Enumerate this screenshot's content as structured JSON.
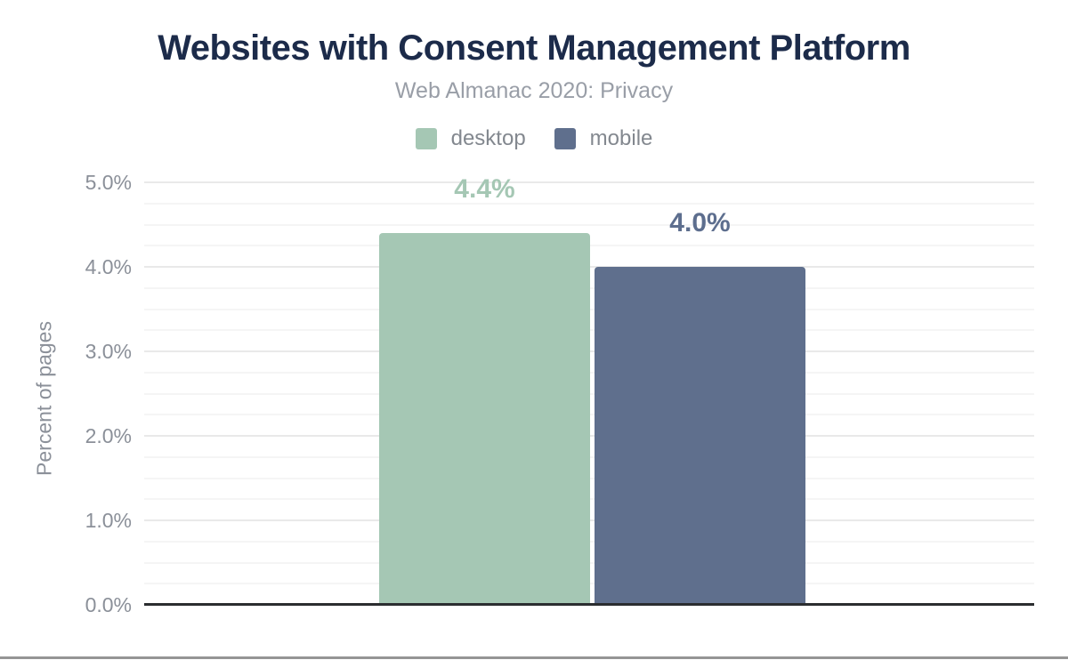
{
  "chart_data": {
    "type": "bar",
    "title": "Websites with Consent Management Platform",
    "subtitle": "Web Almanac 2020: Privacy",
    "ylabel": "Percent of pages",
    "ylim": [
      0,
      5
    ],
    "ytick_step": 1,
    "minor_grid_step": 0.25,
    "yticks": [
      "0.0%",
      "1.0%",
      "2.0%",
      "3.0%",
      "4.0%",
      "5.0%"
    ],
    "grid": "horizontal",
    "legend_position": "top",
    "series": [
      {
        "name": "desktop",
        "value": 4.4,
        "label": "4.4%",
        "color": "#a5c7b4",
        "label_color": "#a5c7b4"
      },
      {
        "name": "mobile",
        "value": 4.0,
        "label": "4.0%",
        "color": "#5f6f8d",
        "label_color": "#5d6e8e"
      }
    ]
  },
  "theme": {
    "title_color": "#1c2b4a",
    "subtitle_color": "#999ea7",
    "tick_color": "#8b9099",
    "axis_color": "#2b2d30",
    "divider_color": "#959595"
  }
}
